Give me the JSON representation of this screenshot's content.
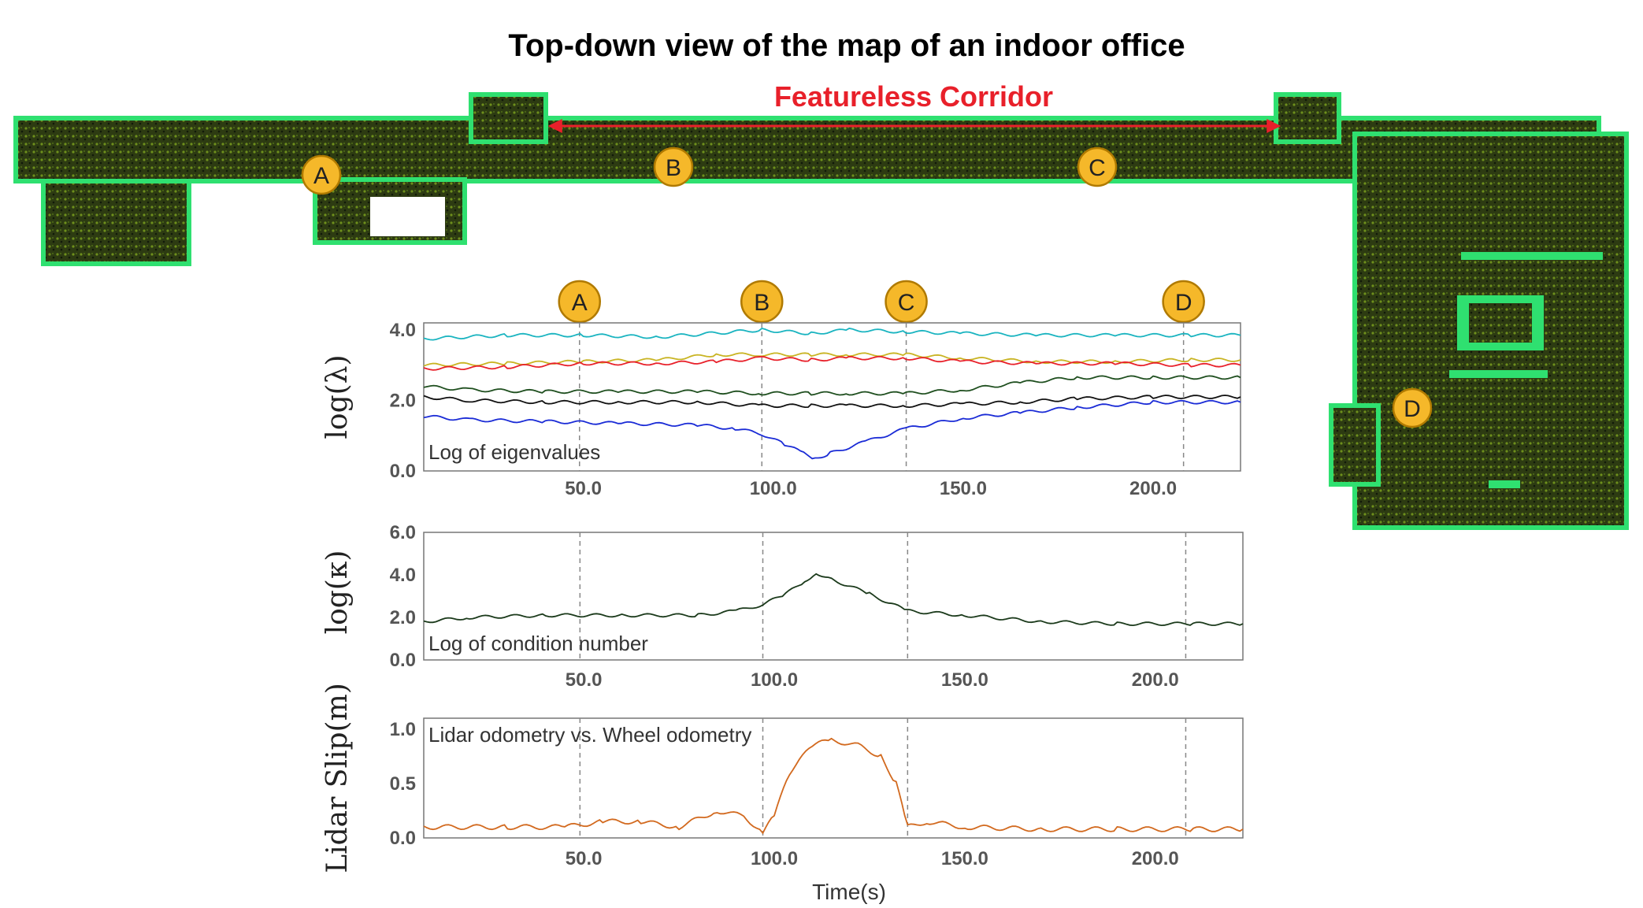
{
  "figure": {
    "title": "Top-down view of the map of an indoor office",
    "corridor_label": "Featureless Corridor",
    "map_markers": [
      "A",
      "B",
      "C",
      "D"
    ]
  },
  "colors": {
    "eig_cyan": "#1ab4c0",
    "eig_yellow": "#c9b423",
    "eig_red": "#e8202a",
    "eig_darkgreen": "#1f4f1f",
    "eig_black": "#111111",
    "eig_blue": "#1a2bd6",
    "cond": "#1b3a1b",
    "slip": "#d2691e",
    "marker_fill": "#f5b82a",
    "corridor_arrow": "#e8202a"
  },
  "chart_data": [
    {
      "type": "line",
      "ylabel": "log(λ)",
      "annotation": "Log of eigenvalues",
      "xlim": [
        8,
        223
      ],
      "ylim": [
        0,
        4.2
      ],
      "xticks": [
        "50.0",
        "100.0",
        "150.0",
        "200.0"
      ],
      "yticks": [
        "0.0",
        "2.0",
        "4.0"
      ],
      "event_markers": [
        {
          "label": "A",
          "x": 49
        },
        {
          "label": "B",
          "x": 97
        },
        {
          "label": "C",
          "x": 135
        },
        {
          "label": "D",
          "x": 208
        }
      ],
      "series": [
        {
          "color_key": "eig_cyan",
          "x": [
            8,
            30,
            50,
            70,
            97,
            110,
            120,
            135,
            150,
            170,
            190,
            210,
            223
          ],
          "y": [
            3.75,
            3.85,
            3.85,
            3.8,
            4.0,
            3.9,
            4.0,
            3.95,
            3.9,
            3.85,
            3.85,
            3.85,
            3.85
          ]
        },
        {
          "color_key": "eig_yellow",
          "x": [
            8,
            30,
            50,
            70,
            85,
            97,
            110,
            120,
            135,
            150,
            170,
            190,
            210,
            223
          ],
          "y": [
            3.0,
            3.05,
            3.1,
            3.15,
            3.3,
            3.3,
            3.3,
            3.3,
            3.3,
            3.2,
            3.1,
            3.1,
            3.15,
            3.15
          ]
        },
        {
          "color_key": "eig_red",
          "x": [
            8,
            30,
            50,
            70,
            85,
            97,
            110,
            120,
            135,
            150,
            170,
            190,
            210,
            223
          ],
          "y": [
            2.9,
            2.95,
            3.05,
            3.05,
            3.1,
            3.2,
            3.15,
            3.2,
            3.2,
            3.1,
            3.05,
            3.05,
            3.0,
            3.0
          ]
        },
        {
          "color_key": "eig_darkgreen",
          "x": [
            8,
            20,
            40,
            60,
            80,
            97,
            110,
            120,
            135,
            150,
            165,
            180,
            200,
            223
          ],
          "y": [
            2.4,
            2.3,
            2.25,
            2.25,
            2.25,
            2.2,
            2.2,
            2.2,
            2.2,
            2.3,
            2.5,
            2.65,
            2.65,
            2.65
          ]
        },
        {
          "color_key": "eig_black",
          "x": [
            8,
            20,
            40,
            60,
            80,
            97,
            110,
            120,
            135,
            150,
            165,
            180,
            200,
            223
          ],
          "y": [
            2.1,
            2.0,
            1.95,
            1.95,
            1.95,
            1.85,
            1.85,
            1.85,
            1.85,
            1.9,
            1.95,
            2.05,
            2.1,
            2.1
          ]
        },
        {
          "color_key": "eig_blue",
          "x": [
            8,
            20,
            40,
            60,
            80,
            90,
            97,
            103,
            108,
            111,
            115,
            125,
            135,
            150,
            165,
            180,
            200,
            223
          ],
          "y": [
            1.55,
            1.45,
            1.4,
            1.35,
            1.3,
            1.2,
            1.05,
            0.75,
            0.5,
            0.35,
            0.5,
            0.85,
            1.2,
            1.5,
            1.65,
            1.8,
            1.95,
            1.95
          ]
        }
      ]
    },
    {
      "type": "line",
      "ylabel": "log(κ)",
      "annotation": "Log of condition number",
      "xlim": [
        8,
        223
      ],
      "ylim": [
        0,
        6.0
      ],
      "xticks": [
        "50.0",
        "100.0",
        "150.0",
        "200.0"
      ],
      "yticks": [
        "0.0",
        "2.0",
        "4.0",
        "6.0"
      ],
      "series": [
        {
          "color_key": "cond",
          "x": [
            8,
            20,
            40,
            60,
            80,
            90,
            97,
            103,
            108,
            111,
            115,
            125,
            135,
            150,
            170,
            190,
            210,
            223
          ],
          "y": [
            1.8,
            2.0,
            2.1,
            2.1,
            2.1,
            2.3,
            2.6,
            3.1,
            3.7,
            4.1,
            3.8,
            3.1,
            2.3,
            2.1,
            1.8,
            1.7,
            1.7,
            1.7
          ]
        }
      ]
    },
    {
      "type": "line",
      "ylabel": "Lidar Slip(m)",
      "annotation": "Lidar odometry vs. Wheel odometry",
      "xlabel": "Time(s)",
      "xlim": [
        8,
        223
      ],
      "ylim": [
        0,
        1.1
      ],
      "xticks": [
        "50.0",
        "100.0",
        "150.0",
        "200.0"
      ],
      "yticks": [
        "0.0",
        "0.5",
        "1.0"
      ],
      "series": [
        {
          "color_key": "slip",
          "x": [
            8,
            30,
            45,
            55,
            65,
            75,
            85,
            92,
            97,
            100,
            104,
            110,
            115,
            122,
            128,
            132,
            135,
            140,
            150,
            170,
            190,
            210,
            223
          ],
          "y": [
            0.1,
            0.1,
            0.1,
            0.15,
            0.15,
            0.1,
            0.25,
            0.2,
            0.05,
            0.2,
            0.6,
            0.85,
            0.9,
            0.85,
            0.75,
            0.5,
            0.1,
            0.15,
            0.1,
            0.08,
            0.08,
            0.08,
            0.08
          ]
        }
      ]
    }
  ]
}
